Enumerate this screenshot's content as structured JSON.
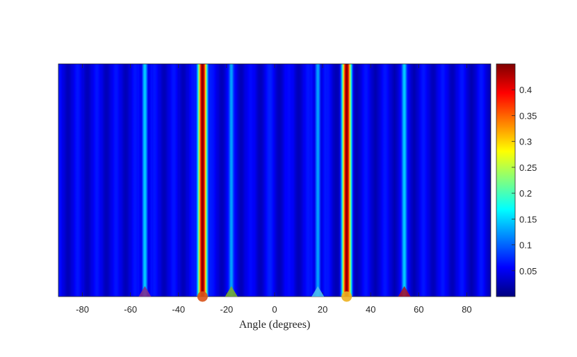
{
  "chart_data": {
    "type": "heatmap",
    "xlabel": "Angle (degrees)",
    "ylabel": "",
    "title": "",
    "xlim": [
      -90,
      90
    ],
    "x_ticks": [
      -80,
      -60,
      -40,
      -20,
      0,
      20,
      40,
      60,
      80
    ],
    "x_tick_labels": [
      "-80",
      "-60",
      "-40",
      "-20",
      "0",
      "20",
      "40",
      "60",
      "80"
    ],
    "colormap": "jet",
    "colorbar": {
      "range": [
        0,
        0.45
      ],
      "ticks": [
        0.05,
        0.1,
        0.15,
        0.2,
        0.25,
        0.3,
        0.35,
        0.4
      ],
      "tick_labels": [
        "0.05",
        "0.1",
        "0.15",
        "0.2",
        "0.25",
        "0.3",
        "0.35",
        "0.4"
      ]
    },
    "profile": [
      {
        "angle": -90,
        "value": 0.02
      },
      {
        "angle": -86,
        "value": 0.06
      },
      {
        "angle": -82,
        "value": 0.02
      },
      {
        "angle": -78,
        "value": 0.06
      },
      {
        "angle": -74,
        "value": 0.03
      },
      {
        "angle": -70,
        "value": 0.065
      },
      {
        "angle": -66,
        "value": 0.03
      },
      {
        "angle": -62,
        "value": 0.06
      },
      {
        "angle": -58,
        "value": 0.02
      },
      {
        "angle": -54,
        "value": 0.15
      },
      {
        "angle": -50,
        "value": 0.02
      },
      {
        "angle": -46,
        "value": 0.065
      },
      {
        "angle": -42,
        "value": 0.02
      },
      {
        "angle": -38,
        "value": 0.06
      },
      {
        "angle": -34,
        "value": 0.02
      },
      {
        "angle": -30,
        "value": 0.45
      },
      {
        "angle": -26,
        "value": 0.02
      },
      {
        "angle": -22,
        "value": 0.06
      },
      {
        "angle": -18,
        "value": 0.13
      },
      {
        "angle": -14,
        "value": 0.04
      },
      {
        "angle": -10,
        "value": 0.05
      },
      {
        "angle": -6,
        "value": 0.06
      },
      {
        "angle": -2,
        "value": 0.08
      },
      {
        "angle": 2,
        "value": 0.07
      },
      {
        "angle": 6,
        "value": 0.05
      },
      {
        "angle": 10,
        "value": 0.06
      },
      {
        "angle": 14,
        "value": 0.04
      },
      {
        "angle": 18,
        "value": 0.13
      },
      {
        "angle": 22,
        "value": 0.05
      },
      {
        "angle": 26,
        "value": 0.02
      },
      {
        "angle": 30,
        "value": 0.45
      },
      {
        "angle": 34,
        "value": 0.02
      },
      {
        "angle": 38,
        "value": 0.06
      },
      {
        "angle": 42,
        "value": 0.02
      },
      {
        "angle": 46,
        "value": 0.065
      },
      {
        "angle": 50,
        "value": 0.02
      },
      {
        "angle": 54,
        "value": 0.15
      },
      {
        "angle": 58,
        "value": 0.02
      },
      {
        "angle": 62,
        "value": 0.06
      },
      {
        "angle": 66,
        "value": 0.03
      },
      {
        "angle": 70,
        "value": 0.065
      },
      {
        "angle": 74,
        "value": 0.03
      },
      {
        "angle": 78,
        "value": 0.06
      },
      {
        "angle": 82,
        "value": 0.02
      },
      {
        "angle": 86,
        "value": 0.06
      },
      {
        "angle": 90,
        "value": 0.02
      }
    ],
    "markers": [
      {
        "angle": -54,
        "shape": "triangle",
        "color": "#7E2F8E"
      },
      {
        "angle": -30,
        "shape": "circle",
        "color": "#D95319"
      },
      {
        "angle": -18,
        "shape": "triangle",
        "color": "#77AC30"
      },
      {
        "angle": 18,
        "shape": "triangle",
        "color": "#4DBEEE"
      },
      {
        "angle": 30,
        "shape": "circle",
        "color": "#EDB120"
      },
      {
        "angle": 54,
        "shape": "triangle",
        "color": "#A2142F"
      }
    ]
  }
}
